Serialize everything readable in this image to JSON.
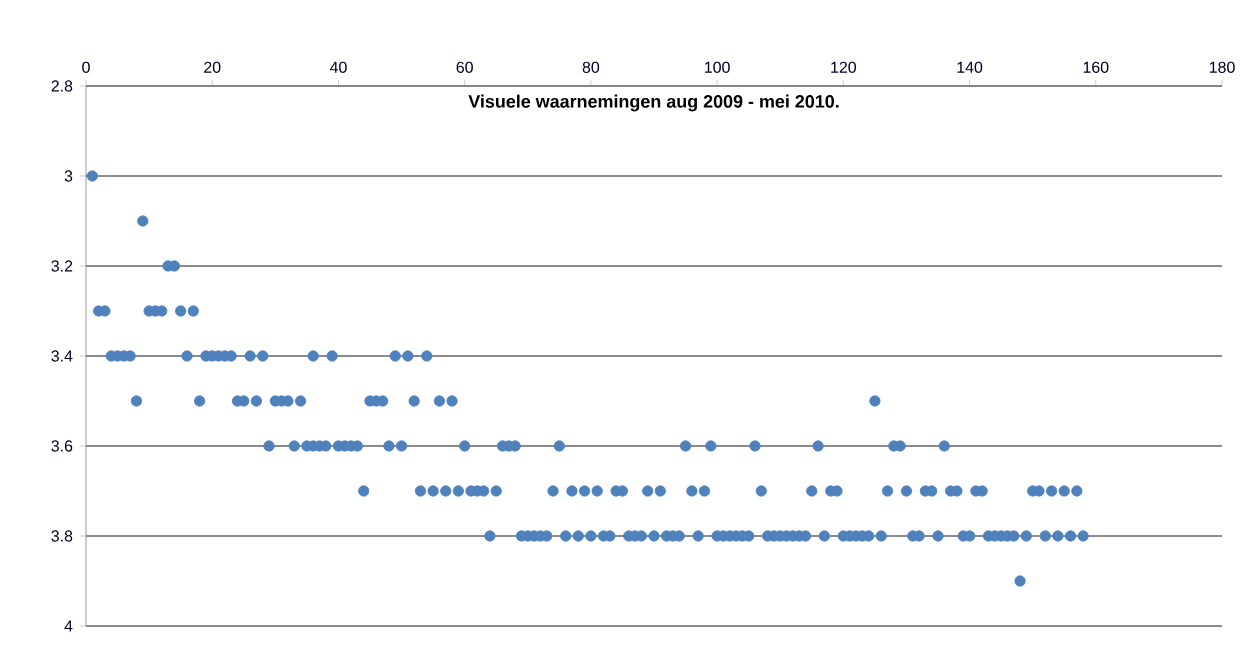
{
  "chart_data": {
    "type": "scatter",
    "title": "Visuele waarnemingen aug 2009 - mei 2010.",
    "x": [
      1,
      2,
      3,
      4,
      5,
      6,
      7,
      8,
      9,
      10,
      11,
      12,
      13,
      14,
      15,
      16,
      17,
      18,
      19,
      20,
      21,
      22,
      23,
      24,
      25,
      26,
      27,
      28,
      29,
      30,
      31,
      32,
      33,
      34,
      35,
      36,
      36,
      37,
      38,
      39,
      40,
      41,
      42,
      43,
      44,
      45,
      46,
      47,
      48,
      49,
      50,
      51,
      52,
      53,
      54,
      55,
      56,
      57,
      58,
      59,
      60,
      61,
      62,
      63,
      64,
      65,
      66,
      67,
      68,
      69,
      70,
      71,
      72,
      73,
      74,
      75,
      76,
      77,
      78,
      79,
      80,
      81,
      82,
      83,
      84,
      85,
      86,
      87,
      88,
      89,
      90,
      91,
      92,
      93,
      94,
      95,
      96,
      97,
      98,
      99,
      100,
      101,
      102,
      103,
      104,
      105,
      106,
      107,
      108,
      109,
      110,
      111,
      112,
      113,
      114,
      115,
      116,
      117,
      118,
      119,
      120,
      121,
      122,
      123,
      124,
      125,
      126,
      127,
      128,
      129,
      130,
      131,
      132,
      133,
      134,
      135,
      136,
      137,
      138,
      139,
      140,
      141,
      142,
      143,
      144,
      145,
      146,
      147,
      148,
      149,
      150,
      151,
      152,
      153,
      154,
      155,
      156,
      157,
      158
    ],
    "values": [
      3.0,
      3.3,
      3.3,
      3.4,
      3.4,
      3.4,
      3.4,
      3.5,
      3.1,
      3.3,
      3.3,
      3.3,
      3.2,
      3.2,
      3.3,
      3.4,
      3.3,
      3.5,
      3.4,
      3.4,
      3.4,
      3.4,
      3.4,
      3.5,
      3.5,
      3.4,
      3.5,
      3.4,
      3.6,
      3.5,
      3.5,
      3.5,
      3.6,
      3.5,
      3.6,
      3.4,
      3.6,
      3.6,
      3.6,
      3.4,
      3.6,
      3.6,
      3.6,
      3.6,
      3.7,
      3.5,
      3.5,
      3.5,
      3.6,
      3.4,
      3.6,
      3.4,
      3.5,
      3.7,
      3.4,
      3.7,
      3.5,
      3.7,
      3.5,
      3.7,
      3.6,
      3.7,
      3.7,
      3.7,
      3.8,
      3.7,
      3.6,
      3.6,
      3.6,
      3.8,
      3.8,
      3.8,
      3.8,
      3.8,
      3.7,
      3.6,
      3.8,
      3.7,
      3.8,
      3.7,
      3.8,
      3.7,
      3.8,
      3.8,
      3.7,
      3.7,
      3.8,
      3.8,
      3.8,
      3.7,
      3.8,
      3.7,
      3.8,
      3.8,
      3.8,
      3.6,
      3.7,
      3.8,
      3.7,
      3.6,
      3.8,
      3.8,
      3.8,
      3.8,
      3.8,
      3.8,
      3.6,
      3.7,
      3.8,
      3.8,
      3.8,
      3.8,
      3.8,
      3.8,
      3.8,
      3.7,
      3.6,
      3.8,
      3.7,
      3.7,
      3.8,
      3.8,
      3.8,
      3.8,
      3.8,
      3.5,
      3.8,
      3.7,
      3.6,
      3.6,
      3.7,
      3.8,
      3.8,
      3.7,
      3.7,
      3.8,
      3.6,
      3.7,
      3.7,
      3.8,
      3.8,
      3.7,
      3.7,
      3.8,
      3.8,
      3.8,
      3.8,
      3.8,
      3.9,
      3.8,
      3.7,
      3.7,
      3.8,
      3.7,
      3.8,
      3.7,
      3.8,
      3.7,
      3.8
    ],
    "color": "#4f81bd",
    "xlim": [
      0,
      180
    ],
    "xticks": [
      0,
      20,
      40,
      60,
      80,
      100,
      120,
      140,
      160,
      180
    ],
    "ylim": [
      4,
      2.8
    ],
    "yticks": [
      2.8,
      3,
      3.2,
      3.4,
      3.6,
      3.8,
      4
    ],
    "grid": "y",
    "tick_labels": "xy"
  }
}
